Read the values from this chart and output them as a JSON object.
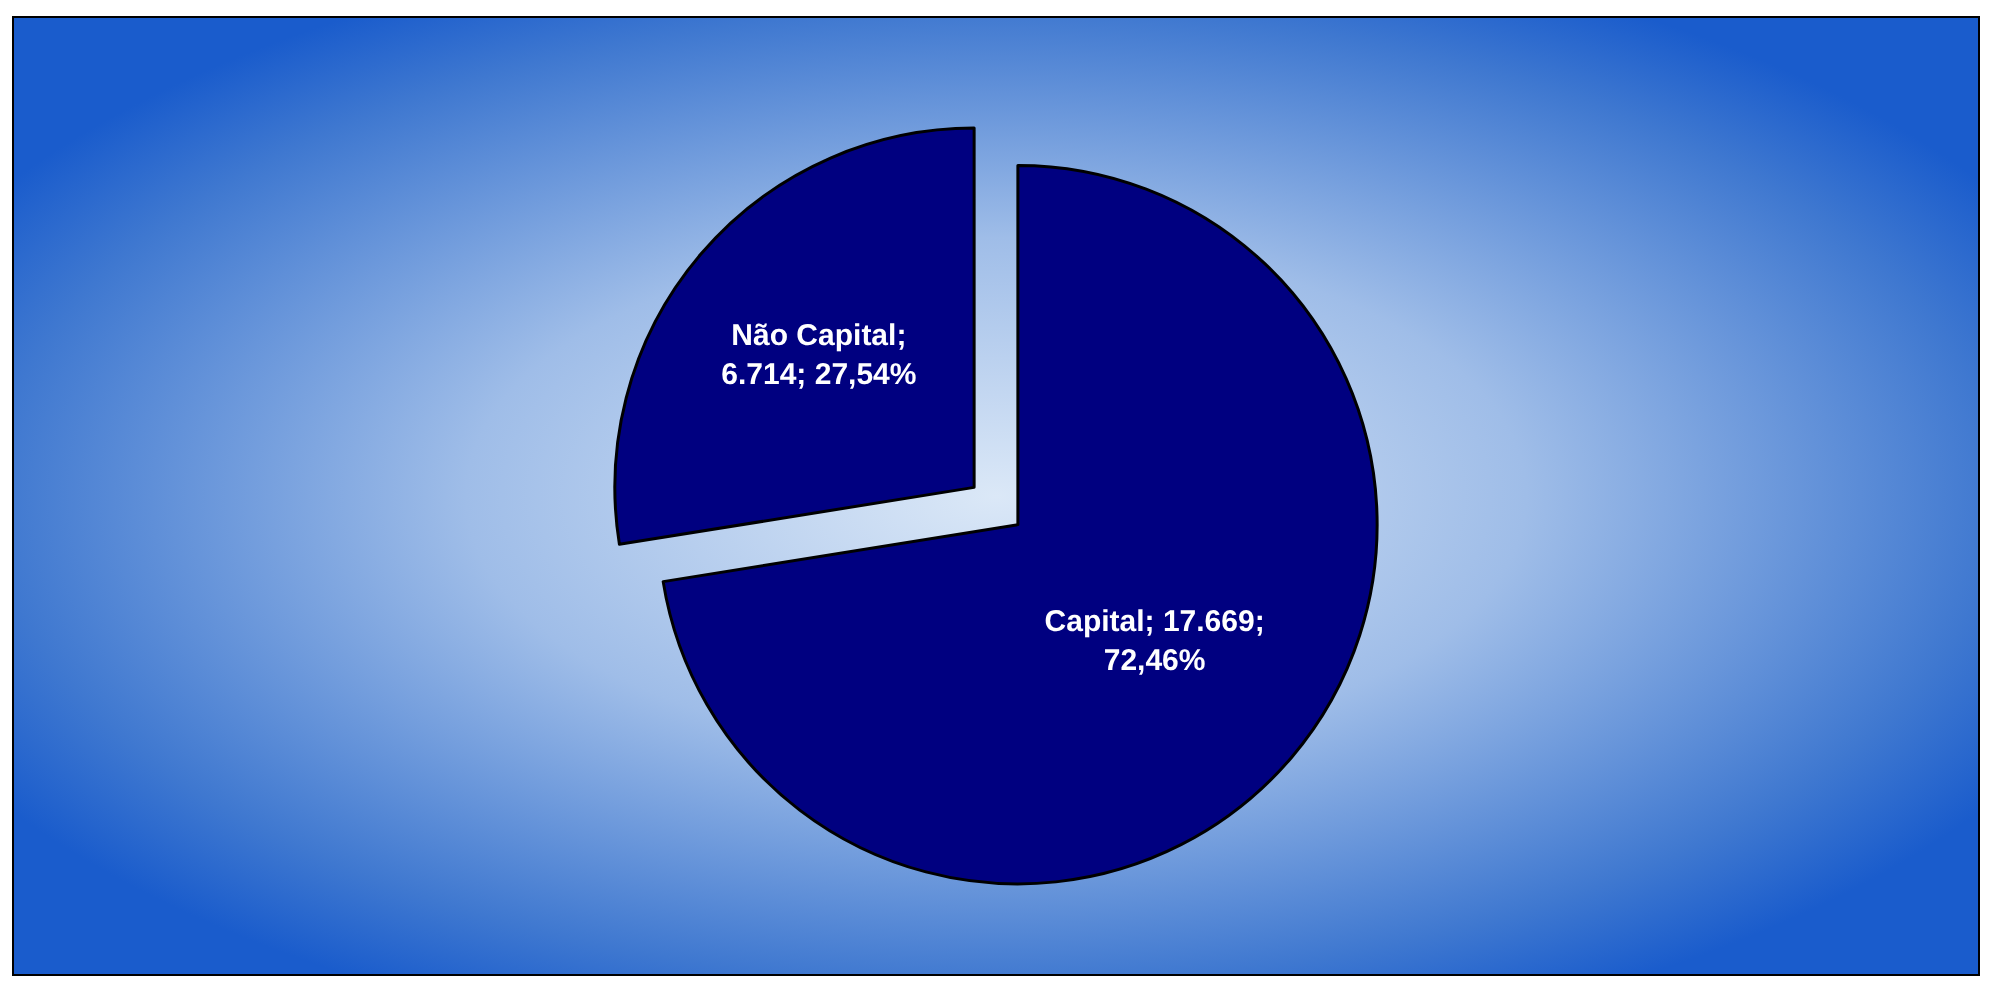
{
  "chart_data": {
    "type": "pie",
    "categories": [
      "Capital",
      "Não Capital"
    ],
    "values": [
      17669,
      6714
    ],
    "colors": [
      "#000080",
      "#000080"
    ],
    "value_labels": [
      "; 17.669;\n72,46%",
      ";\n6.714; 27,54%"
    ],
    "legend": false
  }
}
